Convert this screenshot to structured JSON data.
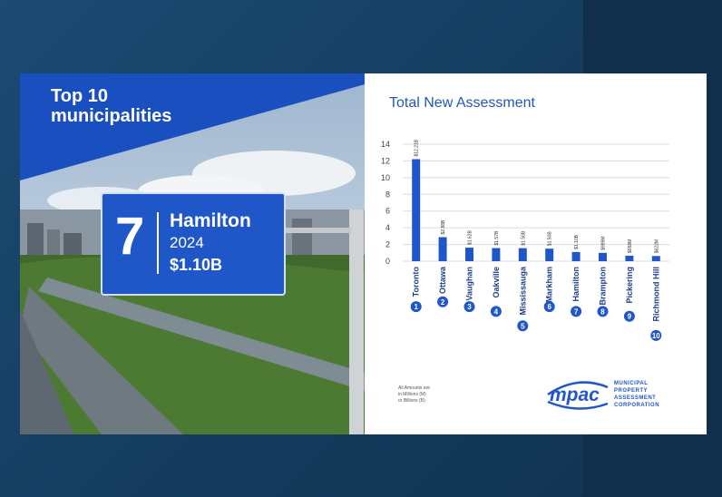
{
  "banner": {
    "line1": "Top 10",
    "line2": "municipalities"
  },
  "highlight": {
    "rank": "7",
    "city": "Hamilton",
    "year": "2024",
    "value": "$1.10B"
  },
  "chart_title": "Total New Assessment",
  "footnote": {
    "line1": "All Amounts are",
    "line2": "in Millions (M)",
    "line3": "or Billions (B)"
  },
  "logo": {
    "word": "mpac",
    "line1": "MUNICIPAL",
    "line2": "PROPERTY",
    "line3": "ASSESSMENT",
    "line4": "CORPORATION"
  },
  "colors": {
    "accent": "#1f57c8",
    "banner": "#1a4fc0",
    "bar": "#1f57c8"
  },
  "chart_data": {
    "type": "bar",
    "categories": [
      "Toronto",
      "Ottawa",
      "Vaughan",
      "Oakville",
      "Mississauga",
      "Markham",
      "Hamilton",
      "Brampton",
      "Pickering",
      "Richmond Hill"
    ],
    "ranks": [
      "1",
      "2",
      "3",
      "4",
      "5",
      "6",
      "7",
      "8",
      "9",
      "10"
    ],
    "values": [
      12.21,
      2.88,
      1.62,
      1.57,
      1.56,
      1.5,
      1.1,
      0.9994,
      0.6584,
      0.6224
    ],
    "value_labels": [
      "$12.21B",
      "$2.88B",
      "$1.62B",
      "$1.57B",
      "$1.56B",
      "$1.50B",
      "$1.10B",
      "$999M",
      "$658M",
      "$622M"
    ],
    "yticks": [
      "0",
      "2",
      "4",
      "6",
      "8",
      "10",
      "12",
      "14"
    ],
    "ylim": [
      0,
      14
    ],
    "grid": true,
    "title": "Total New Assessment"
  }
}
